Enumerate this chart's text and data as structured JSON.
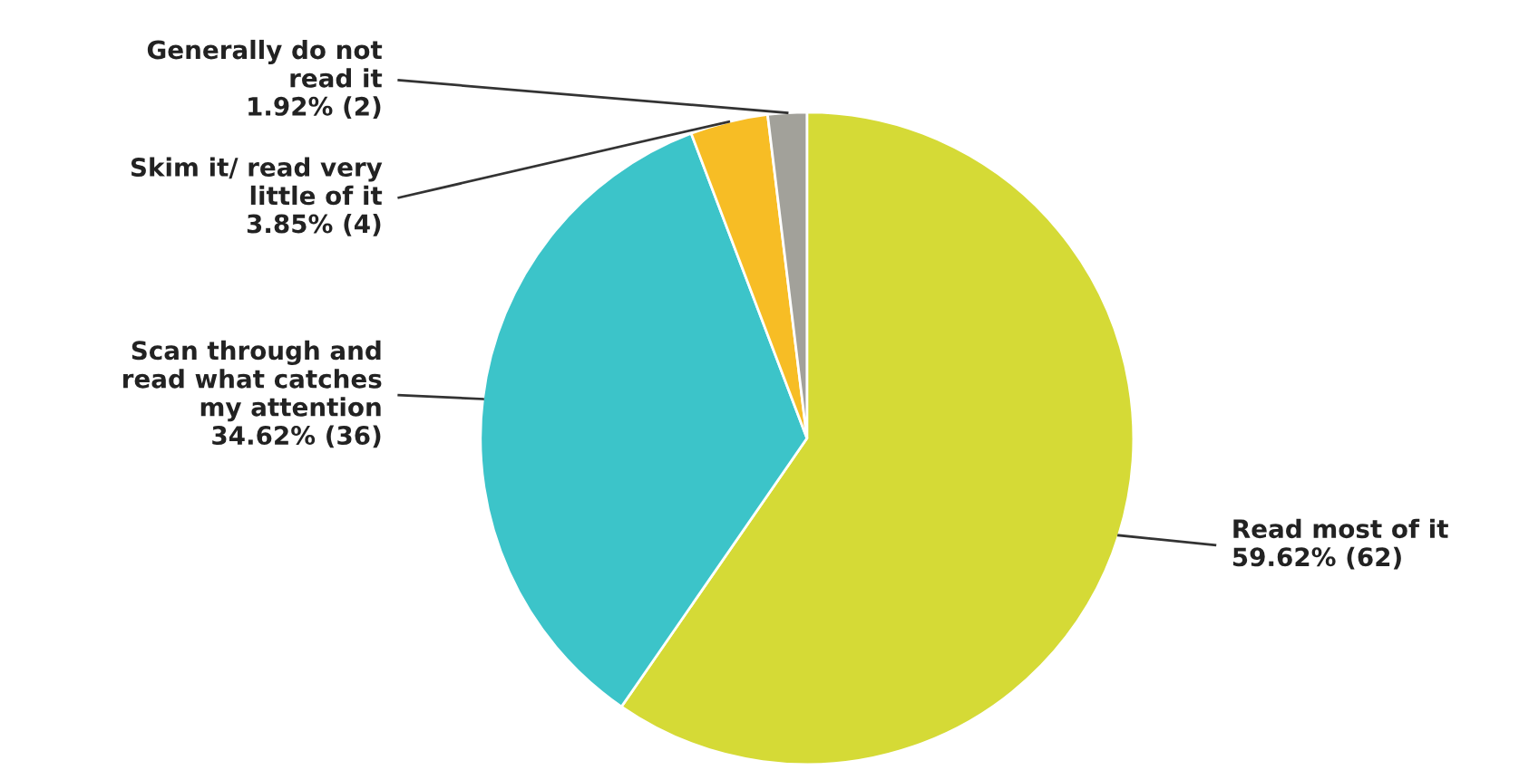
{
  "chart_data": {
    "type": "pie",
    "categories": [
      "Read most of it",
      "Scan through and\nread what catches\nmy attention",
      "Skim it/ read very\nlittle of it",
      "Generally do not\nread it"
    ],
    "values": [
      62,
      36,
      4,
      2
    ],
    "value_labels": [
      "59.62% (62)",
      "34.62% (36)",
      "3.85% (4)",
      "1.92% (2)"
    ],
    "colors": [
      "#d5da36",
      "#3cc4c9",
      "#f7bd25",
      "#a2a19a"
    ]
  }
}
